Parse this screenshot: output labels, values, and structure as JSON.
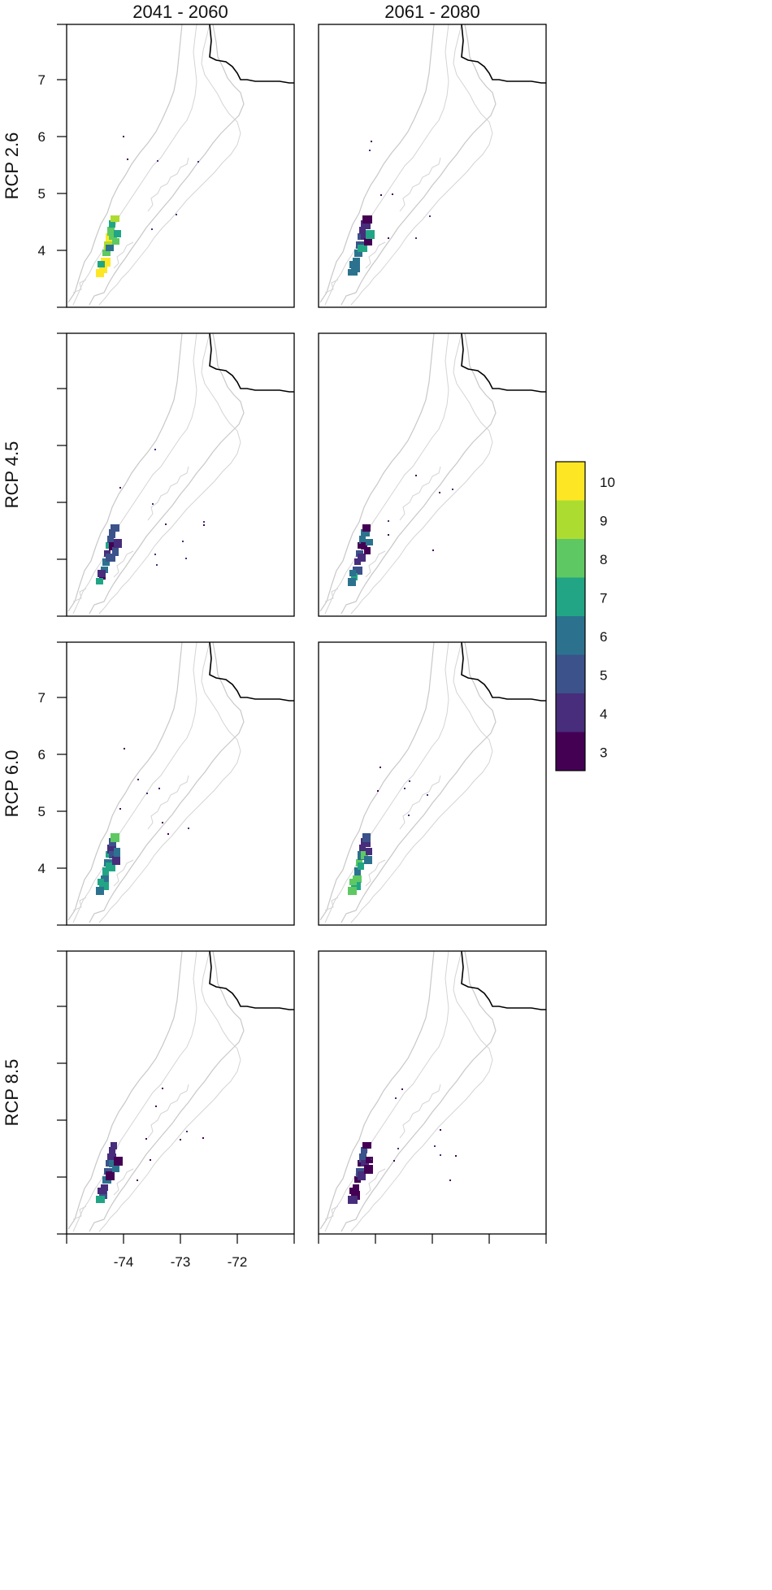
{
  "figure": {
    "columns": [
      {
        "id": "p2041",
        "label": "2041 - 2060"
      },
      {
        "id": "p2061",
        "label": "2061 - 2080"
      }
    ],
    "rows": [
      {
        "id": "rcp26",
        "label": "RCP 2.6",
        "show_y_labels": true
      },
      {
        "id": "rcp45",
        "label": "RCP 4.5",
        "show_y_labels": false
      },
      {
        "id": "rcp60",
        "label": "RCP 6.0",
        "show_y_labels": true
      },
      {
        "id": "rcp85",
        "label": "RCP 8.5",
        "show_y_labels": false
      }
    ],
    "y_ticks": [
      "7",
      "6",
      "5",
      "4"
    ],
    "x_ticks": [
      "-74",
      "-73",
      "-72"
    ],
    "legend": {
      "levels": [
        {
          "label": "10",
          "color": "#fde725"
        },
        {
          "label": "9",
          "color": "#addc30"
        },
        {
          "label": "8",
          "color": "#5ec962"
        },
        {
          "label": "7",
          "color": "#21a585"
        },
        {
          "label": "6",
          "color": "#2c728e"
        },
        {
          "label": "5",
          "color": "#3b528b"
        },
        {
          "label": "4",
          "color": "#472d7b"
        },
        {
          "label": "3",
          "color": "#440154"
        }
      ]
    },
    "colors": {
      "contour": "#c8c8c8",
      "border": "#000000"
    }
  }
}
